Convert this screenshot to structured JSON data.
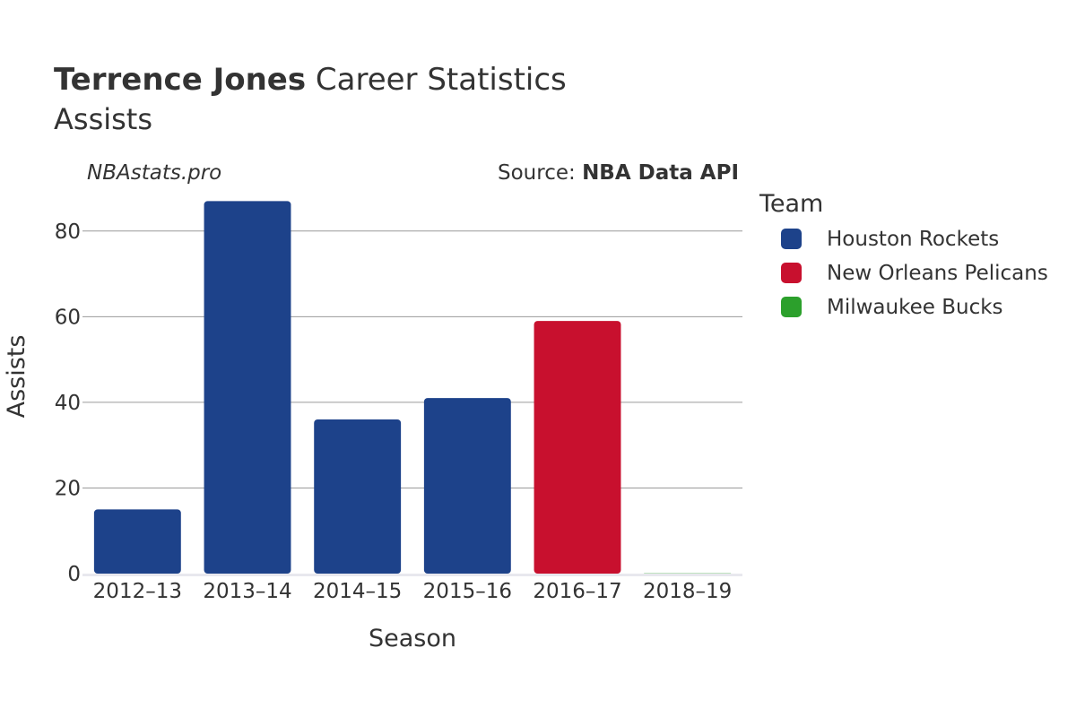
{
  "header": {
    "title_bold": "Terrence Jones",
    "title_rest": " Career Statistics",
    "subtitle": "Assists"
  },
  "credits": {
    "site": "NBAstats.pro",
    "source_prefix": "Source: ",
    "source_bold": "NBA Data API"
  },
  "legend": {
    "title": "Team",
    "items": [
      {
        "label": "Houston Rockets",
        "color": "#1d428a"
      },
      {
        "label": "New Orleans Pelicans",
        "color": "#c8102e"
      },
      {
        "label": "Milwaukee Bucks",
        "color": "#2ca02c"
      }
    ]
  },
  "chart_data": {
    "type": "bar",
    "title": "Terrence Jones Career Statistics",
    "subtitle": "Assists",
    "xlabel": "Season",
    "ylabel": "Assists",
    "categories": [
      "2012–13",
      "2013–14",
      "2014–15",
      "2015–16",
      "2016–17",
      "2018–19"
    ],
    "values": [
      15,
      87,
      36,
      41,
      59,
      0
    ],
    "teams": [
      "Houston Rockets",
      "Houston Rockets",
      "Houston Rockets",
      "Houston Rockets",
      "New Orleans Pelicans",
      "Milwaukee Bucks"
    ],
    "colors": [
      "#1d428a",
      "#1d428a",
      "#1d428a",
      "#1d428a",
      "#c8102e",
      "#2ca02c"
    ],
    "ylim": [
      0,
      90
    ],
    "yticks": [
      0,
      20,
      40,
      60,
      80
    ],
    "grid": true,
    "legend_position": "right"
  }
}
